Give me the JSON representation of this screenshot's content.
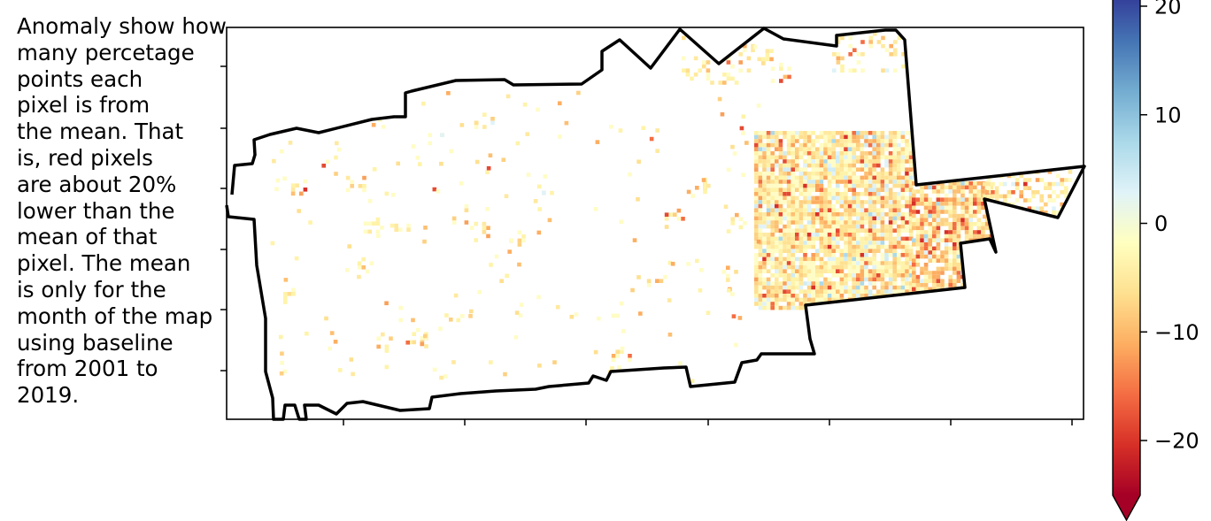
{
  "annotation": "Anomaly show how\nmany percetage\npoints each\npixel is from\nthe mean. That\nis, red pixels\nare about 20%\nlower than the\nmean of that\npixel. The mean\nis only for the\nmonth of the map\nusing baseline\nfrom 2001 to\n2019.",
  "colorbar": {
    "ticks": [
      "20",
      "10",
      "0",
      "−10",
      "−20"
    ],
    "tick_values": [
      20,
      10,
      0,
      -10,
      -20
    ],
    "range": [
      -26,
      26
    ],
    "extend": "min",
    "colormap": "RdYlBu",
    "colors": [
      "#a50026",
      "#d73027",
      "#f46d43",
      "#fdae61",
      "#fee090",
      "#ffffbf",
      "#e0f3f8",
      "#abd9e9",
      "#74add1",
      "#4575b4",
      "#313695"
    ]
  },
  "map": {
    "axis_tick_labels": "none",
    "boundary_color": "#000000",
    "colored_clusters": "yellow/orange anomaly pixels, dense in the east; scattered small pixels elsewhere"
  }
}
